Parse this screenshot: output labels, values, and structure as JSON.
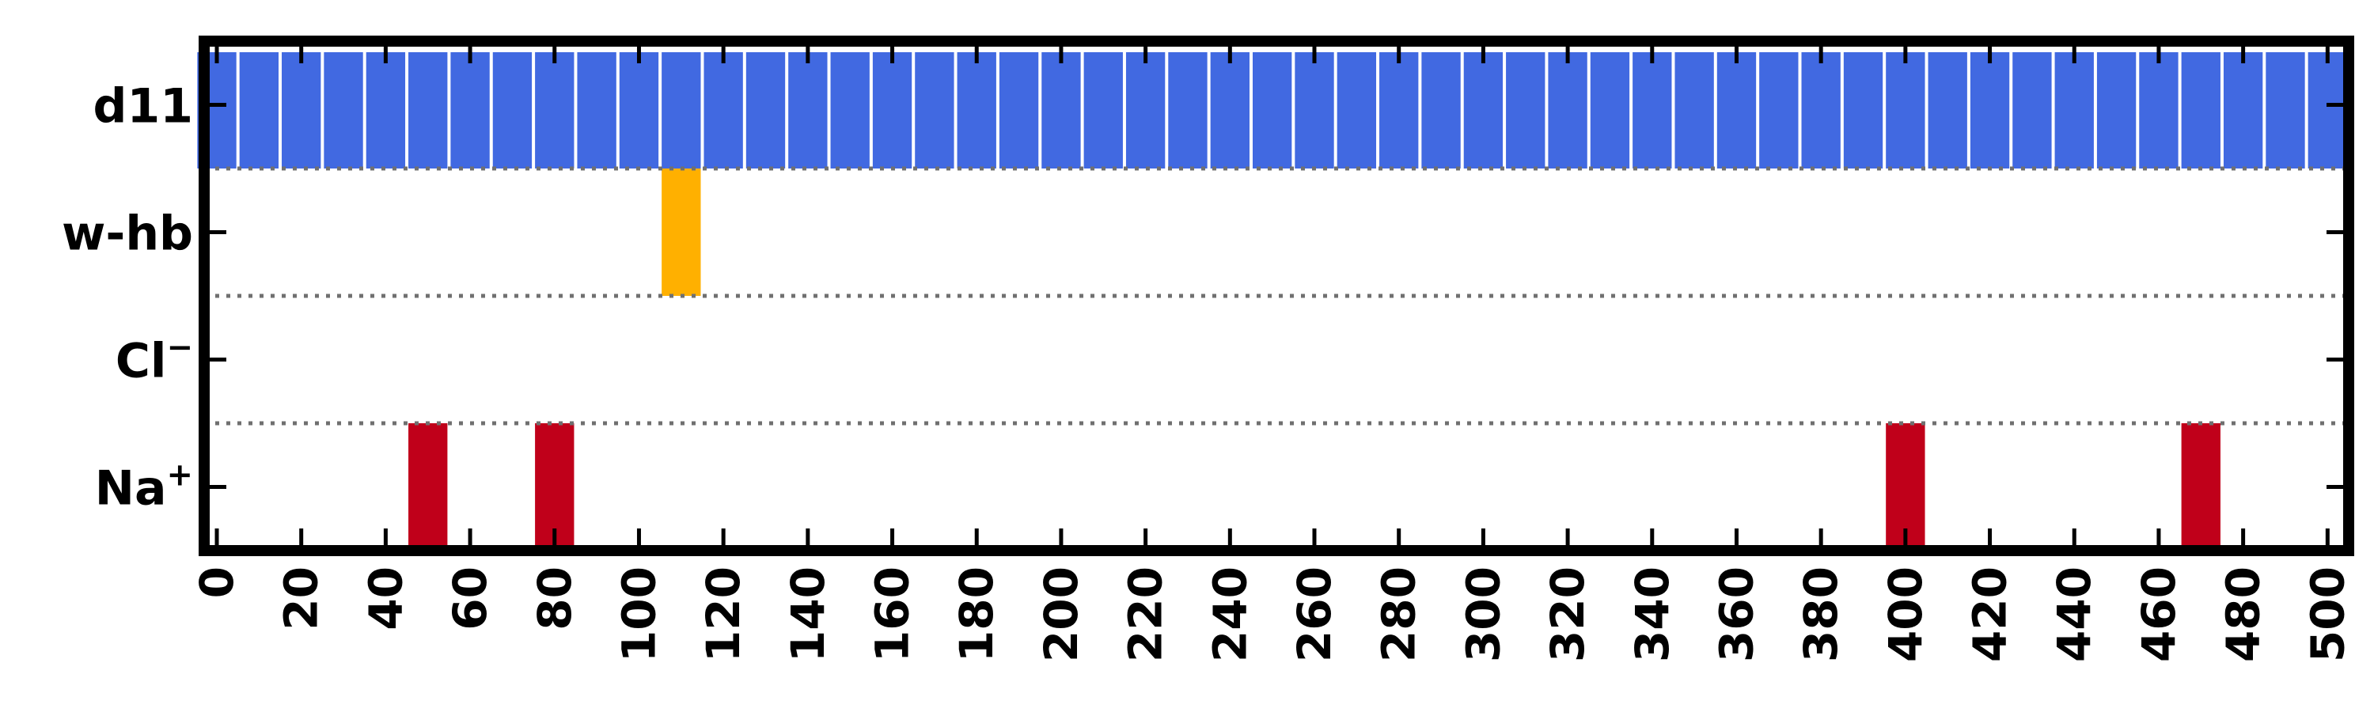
{
  "chart_data": {
    "type": "bar",
    "x_ticks": [
      "0",
      "20",
      "40",
      "60",
      "80",
      "100",
      "120",
      "140",
      "160",
      "180",
      "200",
      "220",
      "240",
      "260",
      "280",
      "300",
      "320",
      "340",
      "360",
      "380",
      "400",
      "420",
      "440",
      "460",
      "480",
      "500"
    ],
    "xlim": [
      -3,
      505
    ],
    "bin_width": 10,
    "rows": [
      {
        "label": "d11",
        "color": "#4169e1",
        "bins": [
          0,
          10,
          20,
          30,
          40,
          50,
          60,
          70,
          80,
          90,
          100,
          110,
          120,
          130,
          140,
          150,
          160,
          170,
          180,
          190,
          200,
          210,
          220,
          230,
          240,
          250,
          260,
          270,
          280,
          290,
          300,
          310,
          320,
          330,
          340,
          350,
          360,
          370,
          380,
          390,
          400,
          410,
          420,
          430,
          440,
          450,
          460,
          470,
          480,
          490,
          500
        ]
      },
      {
        "label": "w-hb",
        "color": "#ffb000",
        "bins": [
          110
        ]
      },
      {
        "label": "Cl",
        "sup": "−",
        "color": "#c0001a",
        "bins": []
      },
      {
        "label": "Na",
        "sup": "+",
        "color": "#c0001a",
        "bins": [
          50,
          80,
          400,
          470
        ]
      }
    ]
  }
}
